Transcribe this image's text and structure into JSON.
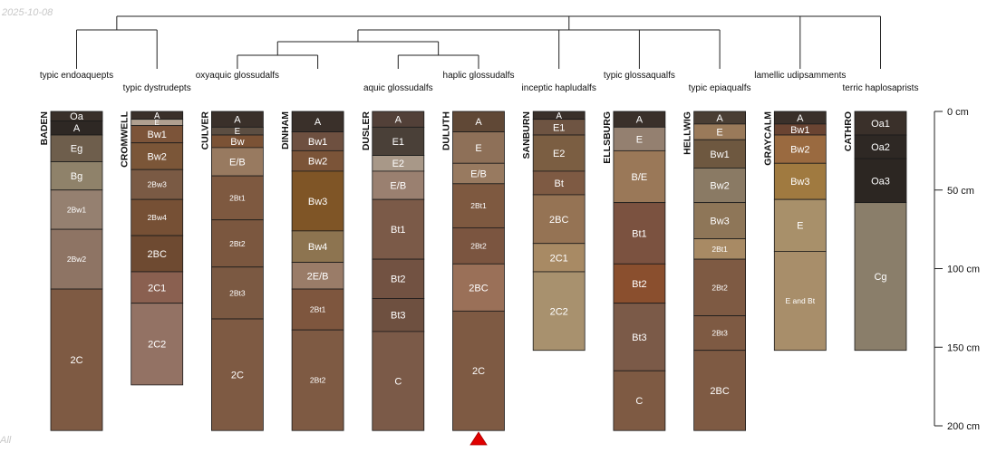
{
  "date_stamp": "2025-10-08",
  "corner_label": "All",
  "chart_data": {
    "type": "soil-profile-sketch",
    "depth_unit": "cm",
    "depth_axis": {
      "ticks": [
        0,
        50,
        100,
        150,
        200
      ],
      "labels": [
        "0 cm",
        "50 cm",
        "100 cm",
        "150 cm",
        "200 cm"
      ],
      "range": [
        0,
        200
      ]
    },
    "dendrogram_leaf_order": [
      "BADEN",
      "CROMWELL",
      "CULVER",
      "DINHAM",
      "DUSLER",
      "DULUTH",
      "SANBURN",
      "ELLSBURG",
      "HELLWIG",
      "GRAYCALM",
      "CATHRO"
    ],
    "dendrogram_merges": [
      {
        "left": "BADEN",
        "right": "CROMWELL",
        "level": 3
      },
      {
        "left": "CULVER",
        "right": "DINHAM",
        "level": 1
      },
      {
        "left": "DUSLER",
        "right": "DULUTH",
        "level": 1
      },
      {
        "left": "CULVER+DINHAM",
        "right": "DUSLER+DULUTH",
        "level": 2
      },
      {
        "left": "CULVER-DULUTH",
        "right": "SANBURN",
        "level": 3
      },
      {
        "left": "ELLSBURG",
        "right": "HELLWIG",
        "level": 3
      },
      {
        "left": "CULVER-SANBURN",
        "right": "ELLSBURG+HELLWIG",
        "level": 4
      },
      {
        "left": "CULVER-HELLWIG",
        "right": "GRAYCALM",
        "level": 5
      },
      {
        "left": "CULVER-GRAYCALM",
        "right": "CATHRO",
        "level": 6
      },
      {
        "left": "BADEN+CROMWELL",
        "right": "CULVER-CATHRO",
        "level": 7
      }
    ],
    "marker": {
      "profile": "DULUTH",
      "shape": "triangle",
      "color": "#e00000"
    },
    "profiles": [
      {
        "name": "BADEN",
        "taxon": "typic endoaquepts",
        "horizons": [
          {
            "name": "Oa",
            "top": 0,
            "bottom": 6,
            "color": "#3a302a"
          },
          {
            "name": "A",
            "top": 6,
            "bottom": 15,
            "color": "#2e2824"
          },
          {
            "name": "Eg",
            "top": 15,
            "bottom": 32,
            "color": "#6e5e4c"
          },
          {
            "name": "Bg",
            "top": 32,
            "bottom": 50,
            "color": "#8f826a"
          },
          {
            "name": "2Bw1",
            "top": 50,
            "bottom": 75,
            "color": "#958070"
          },
          {
            "name": "2Bw2",
            "top": 75,
            "bottom": 113,
            "color": "#8e7464"
          },
          {
            "name": "2C",
            "top": 113,
            "bottom": 203,
            "color": "#7e5a43"
          }
        ]
      },
      {
        "name": "CROMWELL",
        "taxon": "typic dystrudepts",
        "horizons": [
          {
            "name": "A",
            "top": 0,
            "bottom": 5,
            "color": "#3a302a"
          },
          {
            "name": "E",
            "top": 5,
            "bottom": 9,
            "color": "#b0a090"
          },
          {
            "name": "Bw1",
            "top": 9,
            "bottom": 20,
            "color": "#7c5439"
          },
          {
            "name": "Bw2",
            "top": 20,
            "bottom": 37,
            "color": "#7b5638"
          },
          {
            "name": "2Bw3",
            "top": 37,
            "bottom": 56,
            "color": "#7a5a44"
          },
          {
            "name": "2Bw4",
            "top": 56,
            "bottom": 79,
            "color": "#765035"
          },
          {
            "name": "2BC",
            "top": 79,
            "bottom": 102,
            "color": "#6e4a31"
          },
          {
            "name": "2C1",
            "top": 102,
            "bottom": 122,
            "color": "#8a6050"
          },
          {
            "name": "2C2",
            "top": 122,
            "bottom": 174,
            "color": "#937264"
          }
        ]
      },
      {
        "name": "CULVER",
        "taxon": "oxyaquic glossudalfs",
        "horizons": [
          {
            "name": "A",
            "top": 0,
            "bottom": 10,
            "color": "#3a302a"
          },
          {
            "name": "E",
            "top": 10,
            "bottom": 15,
            "color": "#5c4e42"
          },
          {
            "name": "Bw",
            "top": 15,
            "bottom": 23,
            "color": "#7b5235"
          },
          {
            "name": "E/B",
            "top": 23,
            "bottom": 41,
            "color": "#987a60"
          },
          {
            "name": "2Bt1",
            "top": 41,
            "bottom": 69,
            "color": "#7e5940"
          },
          {
            "name": "2Bt2",
            "top": 69,
            "bottom": 99,
            "color": "#7b573f"
          },
          {
            "name": "2Bt3",
            "top": 99,
            "bottom": 132,
            "color": "#7b5942"
          },
          {
            "name": "2C",
            "top": 132,
            "bottom": 203,
            "color": "#7e5a43"
          }
        ]
      },
      {
        "name": "DINHAM",
        "taxon": "",
        "horizons": [
          {
            "name": "A",
            "top": 0,
            "bottom": 13,
            "color": "#3a302a"
          },
          {
            "name": "Bw1",
            "top": 13,
            "bottom": 25,
            "color": "#6e5040"
          },
          {
            "name": "Bw2",
            "top": 25,
            "bottom": 38,
            "color": "#7b5438"
          },
          {
            "name": "Bw3",
            "top": 38,
            "bottom": 76,
            "color": "#7f5526"
          },
          {
            "name": "Bw4",
            "top": 76,
            "bottom": 96,
            "color": "#8d7450"
          },
          {
            "name": "2E/B",
            "top": 96,
            "bottom": 113,
            "color": "#9a7c68"
          },
          {
            "name": "2Bt1",
            "top": 113,
            "bottom": 139,
            "color": "#7e563e"
          },
          {
            "name": "2Bt2",
            "top": 139,
            "bottom": 203,
            "color": "#7e5a43"
          }
        ]
      },
      {
        "name": "DUSLER",
        "taxon": "aquic glossudalfs",
        "horizons": [
          {
            "name": "A",
            "top": 0,
            "bottom": 10,
            "color": "#524038"
          },
          {
            "name": "E1",
            "top": 10,
            "bottom": 28,
            "color": "#4a4038"
          },
          {
            "name": "E2",
            "top": 28,
            "bottom": 38,
            "color": "#a89888"
          },
          {
            "name": "E/B",
            "top": 38,
            "bottom": 56,
            "color": "#9a8070"
          },
          {
            "name": "Bt1",
            "top": 56,
            "bottom": 94,
            "color": "#7b5a48"
          },
          {
            "name": "Bt2",
            "top": 94,
            "bottom": 119,
            "color": "#725242"
          },
          {
            "name": "Bt3",
            "top": 119,
            "bottom": 140,
            "color": "#6e5040"
          },
          {
            "name": "C",
            "top": 140,
            "bottom": 203,
            "color": "#7b5a48"
          }
        ]
      },
      {
        "name": "DULUTH",
        "taxon": "haplic glossudalfs",
        "horizons": [
          {
            "name": "A",
            "top": 0,
            "bottom": 13,
            "color": "#604836"
          },
          {
            "name": "E",
            "top": 13,
            "bottom": 33,
            "color": "#8e7058"
          },
          {
            "name": "E/B",
            "top": 33,
            "bottom": 46,
            "color": "#987a60"
          },
          {
            "name": "2Bt1",
            "top": 46,
            "bottom": 74,
            "color": "#7e5940"
          },
          {
            "name": "2Bt2",
            "top": 74,
            "bottom": 97,
            "color": "#7b5540"
          },
          {
            "name": "2BC",
            "top": 97,
            "bottom": 127,
            "color": "#9a7058"
          },
          {
            "name": "2C",
            "top": 127,
            "bottom": 203,
            "color": "#7e5a43"
          }
        ]
      },
      {
        "name": "SANBURN",
        "taxon": "inceptic hapludalfs",
        "horizons": [
          {
            "name": "A",
            "top": 0,
            "bottom": 5,
            "color": "#3a302a"
          },
          {
            "name": "E1",
            "top": 5,
            "bottom": 15,
            "color": "#6e5442"
          },
          {
            "name": "E2",
            "top": 15,
            "bottom": 38,
            "color": "#7b5e42"
          },
          {
            "name": "Bt",
            "top": 38,
            "bottom": 53,
            "color": "#7e5a43"
          },
          {
            "name": "2BC",
            "top": 53,
            "bottom": 84,
            "color": "#957354"
          },
          {
            "name": "2C1",
            "top": 84,
            "bottom": 102,
            "color": "#a88a64"
          },
          {
            "name": "2C2",
            "top": 102,
            "bottom": 152,
            "color": "#a8916e"
          }
        ]
      },
      {
        "name": "ELLSBURG",
        "taxon": "typic glossaqualfs",
        "horizons": [
          {
            "name": "A",
            "top": 0,
            "bottom": 10,
            "color": "#3a302a"
          },
          {
            "name": "E",
            "top": 10,
            "bottom": 25,
            "color": "#948070"
          },
          {
            "name": "B/E",
            "top": 25,
            "bottom": 58,
            "color": "#9a7858"
          },
          {
            "name": "Bt1",
            "top": 58,
            "bottom": 97,
            "color": "#7b5240"
          },
          {
            "name": "Bt2",
            "top": 97,
            "bottom": 122,
            "color": "#8a4f2e"
          },
          {
            "name": "Bt3",
            "top": 122,
            "bottom": 165,
            "color": "#7b5a48"
          },
          {
            "name": "C",
            "top": 165,
            "bottom": 203,
            "color": "#7e5a43"
          }
        ]
      },
      {
        "name": "HELLWIG",
        "taxon": "typic epiaqualfs",
        "horizons": [
          {
            "name": "A",
            "top": 0,
            "bottom": 8,
            "color": "#4a3e34"
          },
          {
            "name": "E",
            "top": 8,
            "bottom": 18,
            "color": "#9a7a5a"
          },
          {
            "name": "Bw1",
            "top": 18,
            "bottom": 36,
            "color": "#6e5840"
          },
          {
            "name": "Bw2",
            "top": 36,
            "bottom": 58,
            "color": "#8a7a64"
          },
          {
            "name": "Bw3",
            "top": 58,
            "bottom": 81,
            "color": "#8e7658"
          },
          {
            "name": "2Bt1",
            "top": 81,
            "bottom": 94,
            "color": "#a88a64"
          },
          {
            "name": "2Bt2",
            "top": 94,
            "bottom": 130,
            "color": "#7e5a43"
          },
          {
            "name": "2Bt3",
            "top": 130,
            "bottom": 152,
            "color": "#7e5a43"
          },
          {
            "name": "2BC",
            "top": 152,
            "bottom": 203,
            "color": "#7e5a43"
          }
        ]
      },
      {
        "name": "GRAYCALM",
        "taxon": "lamellic udipsamments",
        "horizons": [
          {
            "name": "A",
            "top": 0,
            "bottom": 8,
            "color": "#3a302a"
          },
          {
            "name": "Bw1",
            "top": 8,
            "bottom": 15,
            "color": "#6a4432"
          },
          {
            "name": "Bw2",
            "top": 15,
            "bottom": 33,
            "color": "#9a6a40"
          },
          {
            "name": "Bw3",
            "top": 33,
            "bottom": 56,
            "color": "#a07a40"
          },
          {
            "name": "E",
            "top": 56,
            "bottom": 89,
            "color": "#a8906a"
          },
          {
            "name": "E and Bt",
            "top": 89,
            "bottom": 152,
            "color": "#a88e6a"
          }
        ]
      },
      {
        "name": "CATHRO",
        "taxon": "terric haplosaprists",
        "horizons": [
          {
            "name": "Oa1",
            "top": 0,
            "bottom": 15,
            "color": "#3a302a"
          },
          {
            "name": "Oa2",
            "top": 15,
            "bottom": 30,
            "color": "#2e2824"
          },
          {
            "name": "Oa3",
            "top": 30,
            "bottom": 58,
            "color": "#2c2622"
          },
          {
            "name": "Cg",
            "top": 58,
            "bottom": 152,
            "color": "#8a7e6a"
          }
        ]
      }
    ]
  }
}
